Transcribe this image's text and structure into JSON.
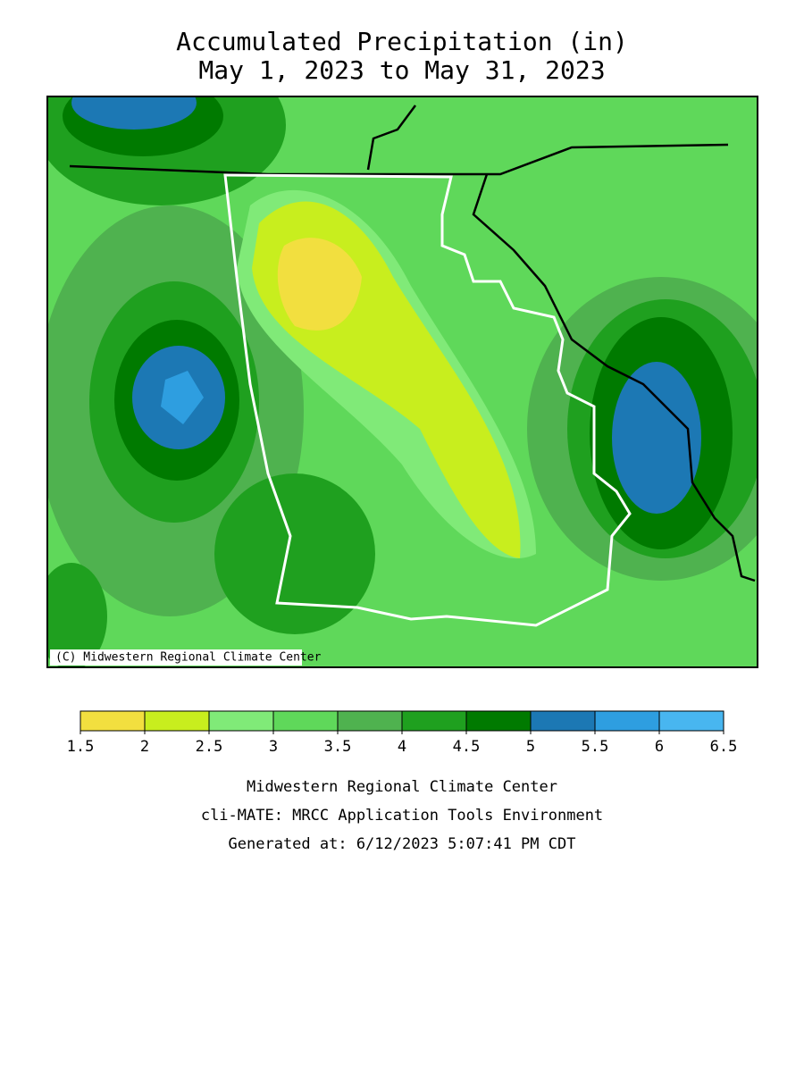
{
  "title": {
    "line1": "Accumulated Precipitation (in)",
    "line2": "May 1, 2023 to May 31, 2023"
  },
  "map": {
    "credit": "(C) Midwestern Regional Climate Center"
  },
  "legend": {
    "ticks": [
      1.5,
      2,
      2.5,
      3,
      3.5,
      4,
      4.5,
      5,
      5.5,
      6,
      6.5
    ],
    "colors": [
      "#f2df3f",
      "#c8ee1e",
      "#80ea78",
      "#5fd85a",
      "#4fb24f",
      "#1fa01f",
      "#007a00",
      "#1c78b4",
      "#2e9ee0",
      "#48b6f0"
    ]
  },
  "footer": {
    "lines": [
      "Midwestern Regional Climate Center",
      "cli-MATE: MRCC Application Tools Environment",
      "Generated at: 6/12/2023 5:07:41 PM CDT"
    ]
  }
}
